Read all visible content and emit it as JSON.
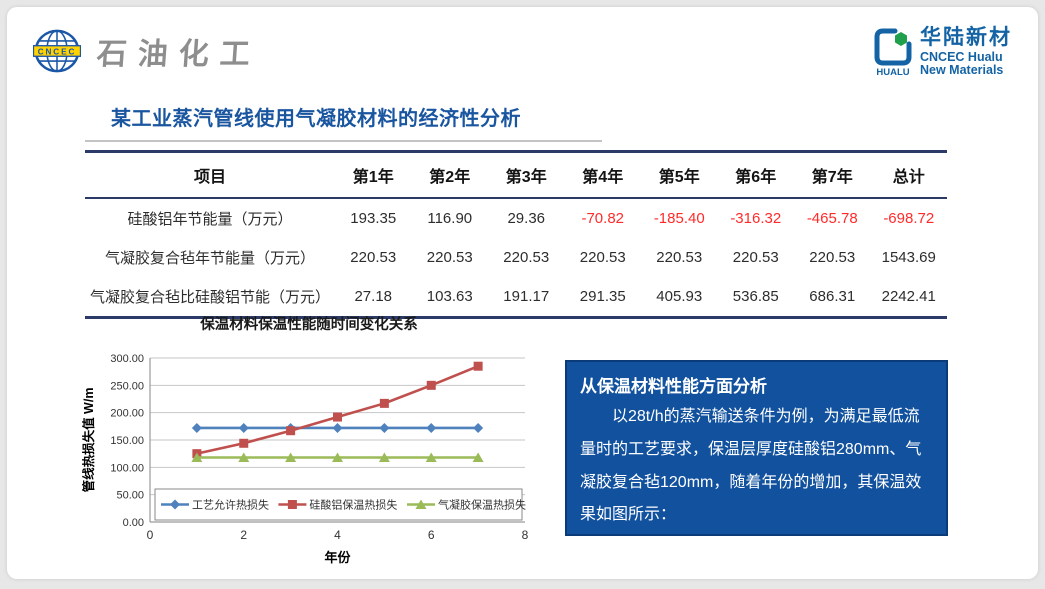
{
  "branding": {
    "left": {
      "emblem": "CNCEC",
      "name": "石油化工"
    },
    "right": {
      "mark": "HUALU",
      "cn_name": "华陆新材",
      "en_line1": "CNCEC Hualu",
      "en_line2": "New Materials"
    }
  },
  "slide": {
    "title": "某工业蒸汽管线使用气凝胶材料的经济性分析"
  },
  "table": {
    "headers": [
      "项目",
      "第1年",
      "第2年",
      "第3年",
      "第4年",
      "第5年",
      "第6年",
      "第7年",
      "总计"
    ],
    "rows": [
      {
        "label": "硅酸铝年节能量（万元）",
        "values": [
          "193.35",
          "116.90",
          "29.36",
          "-70.82",
          "-185.40",
          "-316.32",
          "-465.78",
          "-698.72"
        ]
      },
      {
        "label": "气凝胶复合毡年节能量（万元）",
        "values": [
          "220.53",
          "220.53",
          "220.53",
          "220.53",
          "220.53",
          "220.53",
          "220.53",
          "1543.69"
        ]
      },
      {
        "label": "气凝胶复合毡比硅酸铝节能（万元）",
        "values": [
          "27.18",
          "103.63",
          "191.17",
          "291.35",
          "405.93",
          "536.85",
          "686.31",
          "2242.41"
        ]
      }
    ]
  },
  "chart_data": {
    "type": "line",
    "title": "保温材料保温性能随时间变化关系",
    "xlabel": "年份",
    "ylabel": "管线热损失值 W/m",
    "x": [
      1,
      2,
      3,
      4,
      5,
      6,
      7
    ],
    "xlim": [
      0,
      8
    ],
    "ylim": [
      0,
      300
    ],
    "x_ticks": [
      0,
      2,
      4,
      6,
      8
    ],
    "y_ticks": [
      "0.00",
      "50.00",
      "100.00",
      "150.00",
      "200.00",
      "250.00",
      "300.00"
    ],
    "grid": true,
    "legend_position": "bottom-inside",
    "series": [
      {
        "name": "工艺允许热损失",
        "color": "#4F81BD",
        "marker": "diamond",
        "values": [
          172,
          172,
          172,
          172,
          172,
          172,
          172
        ]
      },
      {
        "name": "硅酸铝保温热损失",
        "color": "#C0504D",
        "marker": "square",
        "values": [
          125,
          144,
          167,
          192,
          217,
          250,
          285
        ]
      },
      {
        "name": "气凝胶保温热损失",
        "color": "#9BBB59",
        "marker": "triangle",
        "values": [
          118,
          118,
          118,
          118,
          118,
          118,
          118
        ]
      }
    ]
  },
  "analysis_box": {
    "title": "从保温材料性能方面分析",
    "body": "以28t/h的蒸汽输送条件为例，为满足最低流量时的工艺要求，保温层厚度硅酸铝280mm、气凝胶复合毡120mm，随着年份的增加，其保温效果如图所示：",
    "bg_color": "#11519E",
    "border_color": "#0A3B78"
  },
  "colors": {
    "title_blue": "#1A56A0",
    "table_rule_navy": "#2B3A66",
    "negative_red": "#FF2B2B",
    "logo_blue": "#1464A5",
    "logo_green": "#21A04C",
    "logo_gray": "#8E8E8E",
    "series_blue": "#4F81BD",
    "series_red": "#C0504D",
    "series_green": "#9BBB59"
  }
}
